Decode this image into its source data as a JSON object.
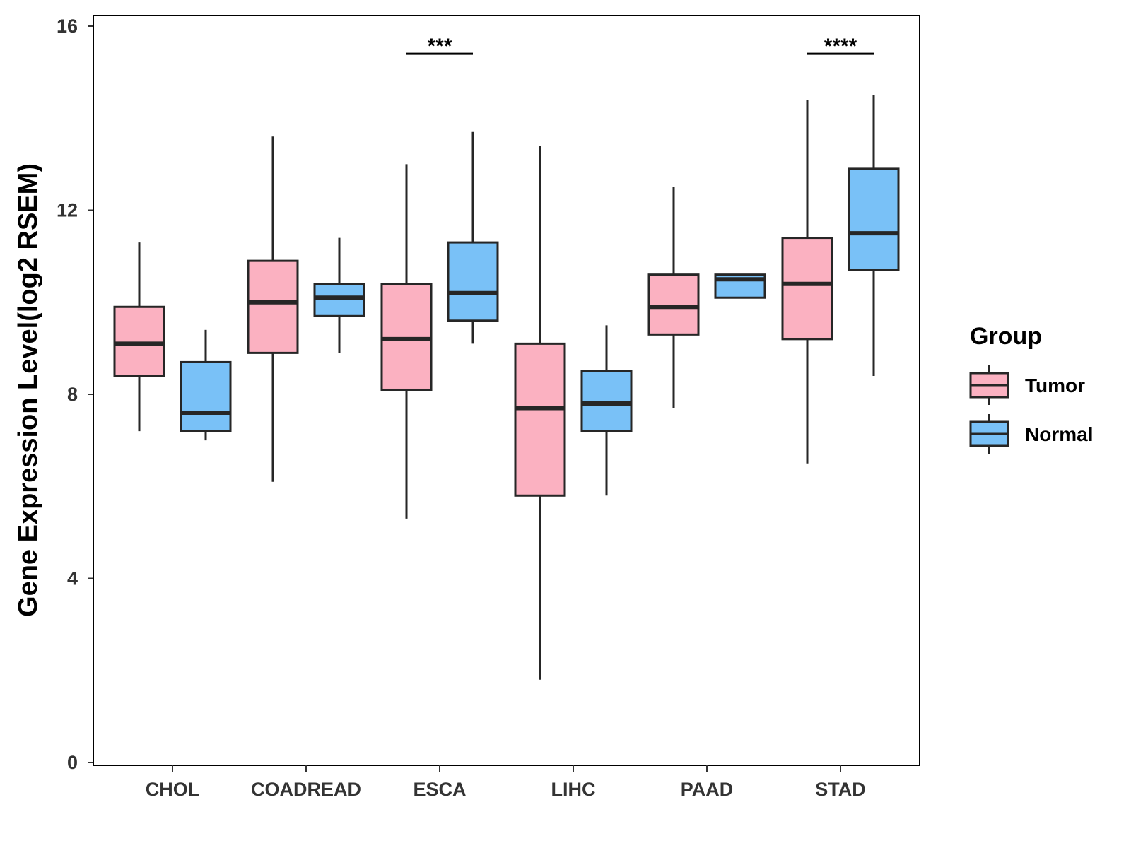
{
  "chart_data": {
    "type": "boxplot",
    "title": "",
    "xlabel": "",
    "ylabel": "Gene Expression Level(log2 RSEM)",
    "ylim": [
      0,
      16
    ],
    "y_ticks": [
      0,
      4,
      8,
      12,
      16
    ],
    "y_tick_labels": [
      "0",
      "4",
      "8",
      "12",
      "16"
    ],
    "categories": [
      "CHOL",
      "COADREAD",
      "ESCA",
      "LIHC",
      "PAAD",
      "STAD"
    ],
    "grid": false,
    "legend": {
      "title": "Group",
      "position": "right",
      "entries": [
        {
          "label": "Tumor",
          "color": "#FBB1C1"
        },
        {
          "label": "Normal",
          "color": "#79C1F7"
        }
      ]
    },
    "series": [
      {
        "name": "Tumor",
        "color": "#FBB1C1",
        "boxes": [
          {
            "category": "CHOL",
            "whisker_low": 7.2,
            "q1": 8.4,
            "median": 9.1,
            "q3": 9.9,
            "whisker_high": 11.3
          },
          {
            "category": "COADREAD",
            "whisker_low": 6.1,
            "q1": 8.9,
            "median": 10.0,
            "q3": 10.9,
            "whisker_high": 13.6
          },
          {
            "category": "ESCA",
            "whisker_low": 5.3,
            "q1": 8.1,
            "median": 9.2,
            "q3": 10.4,
            "whisker_high": 13.0
          },
          {
            "category": "LIHC",
            "whisker_low": 1.8,
            "q1": 5.8,
            "median": 7.7,
            "q3": 9.1,
            "whisker_high": 13.4
          },
          {
            "category": "PAAD",
            "whisker_low": 7.7,
            "q1": 9.3,
            "median": 9.9,
            "q3": 10.6,
            "whisker_high": 12.5
          },
          {
            "category": "STAD",
            "whisker_low": 6.5,
            "q1": 9.2,
            "median": 10.4,
            "q3": 11.4,
            "whisker_high": 14.4
          }
        ]
      },
      {
        "name": "Normal",
        "color": "#79C1F7",
        "boxes": [
          {
            "category": "CHOL",
            "whisker_low": 7.0,
            "q1": 7.2,
            "median": 7.6,
            "q3": 8.7,
            "whisker_high": 9.4
          },
          {
            "category": "COADREAD",
            "whisker_low": 8.9,
            "q1": 9.7,
            "median": 10.1,
            "q3": 10.4,
            "whisker_high": 11.4
          },
          {
            "category": "ESCA",
            "whisker_low": 9.1,
            "q1": 9.6,
            "median": 10.2,
            "q3": 11.3,
            "whisker_high": 13.7
          },
          {
            "category": "LIHC",
            "whisker_low": 5.8,
            "q1": 7.2,
            "median": 7.8,
            "q3": 8.5,
            "whisker_high": 9.5
          },
          {
            "category": "PAAD",
            "whisker_low": 10.1,
            "q1": 10.1,
            "median": 10.5,
            "q3": 10.6,
            "whisker_high": 10.6
          },
          {
            "category": "STAD",
            "whisker_low": 8.4,
            "q1": 10.7,
            "median": 11.5,
            "q3": 12.9,
            "whisker_high": 14.5
          }
        ]
      }
    ],
    "annotations": [
      {
        "category": "ESCA",
        "label": "***",
        "y": 15.4
      },
      {
        "category": "STAD",
        "label": "****",
        "y": 15.4
      }
    ]
  }
}
